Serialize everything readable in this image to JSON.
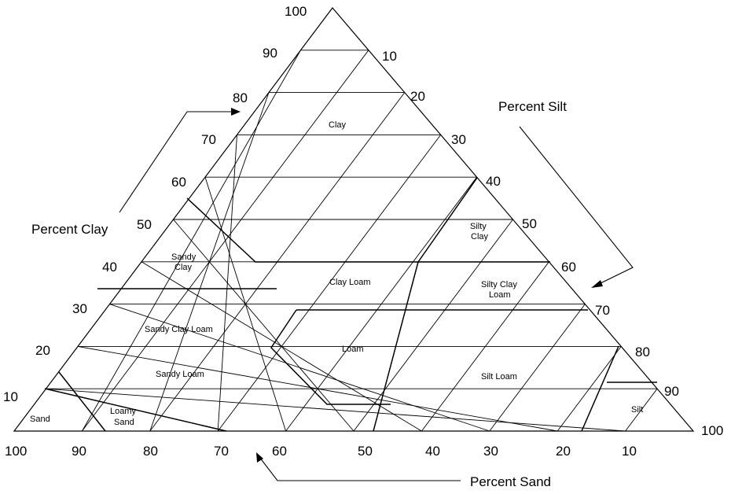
{
  "axes": {
    "clay": {
      "title": "Percent Clay",
      "ticks": [
        "100",
        "90",
        "80",
        "70",
        "60",
        "50",
        "40",
        "30",
        "20",
        "10"
      ]
    },
    "silt": {
      "title": "Percent Silt",
      "ticks": [
        "10",
        "20",
        "30",
        "40",
        "50",
        "60",
        "70",
        "80",
        "90",
        "100"
      ]
    },
    "sand": {
      "title": "Percent Sand",
      "ticks": [
        "100",
        "90",
        "80",
        "70",
        "60",
        "50",
        "40",
        "30",
        "20",
        "10"
      ]
    }
  },
  "regions": {
    "clay": [
      "Clay"
    ],
    "silty_clay": [
      "Silty",
      "Clay"
    ],
    "sandy_clay": [
      "Sandy",
      "Clay"
    ],
    "clay_loam": [
      "Clay Loam"
    ],
    "silty_clay_loam": [
      "Silty Clay",
      "Loam"
    ],
    "sandy_clay_loam": [
      "Sandy Clay Loam"
    ],
    "loam": [
      "Loam"
    ],
    "sandy_loam": [
      "Sandy Loam"
    ],
    "silt_loam": [
      "Silt Loam"
    ],
    "silt": [
      "Silt"
    ],
    "sand": [
      "Sand"
    ],
    "loamy_sand": [
      "Loamy",
      "Sand"
    ]
  }
}
